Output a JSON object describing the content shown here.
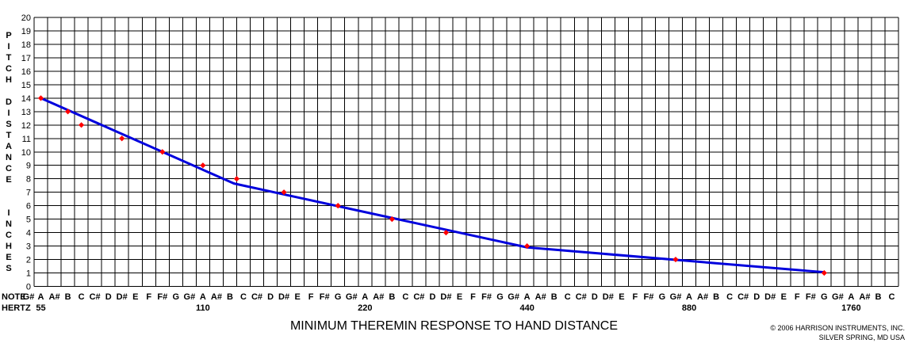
{
  "chart_data": {
    "type": "line",
    "title": "MINIMUM THEREMIN RESPONSE TO HAND DISTANCE",
    "ylabel_top": "PITCH",
    "ylabel_middle": "DISTANCE",
    "ylabel_bottom": "INCHES",
    "ylim": [
      0,
      20
    ],
    "y_ticks": [
      "0",
      "1",
      "2",
      "3",
      "4",
      "5",
      "6",
      "7",
      "8",
      "9",
      "10",
      "11",
      "12",
      "13",
      "14",
      "15",
      "16",
      "17",
      "18",
      "19",
      "20"
    ],
    "note_row_label": "NOTE",
    "hertz_row_label": "HERTZ",
    "notes": [
      "G#",
      "A",
      "A#",
      "B",
      "C",
      "C#",
      "D",
      "D#",
      "E",
      "F",
      "F#",
      "G",
      "G#",
      "A",
      "A#",
      "B",
      "C",
      "C#",
      "D",
      "D#",
      "E",
      "F",
      "F#",
      "G",
      "G#",
      "A",
      "A#",
      "B",
      "C",
      "C#",
      "D",
      "D#",
      "E",
      "F",
      "F#",
      "G",
      "G#",
      "A",
      "A#",
      "B",
      "C",
      "C#",
      "D",
      "D#",
      "E",
      "F",
      "F#",
      "G",
      "G#",
      "A",
      "A#",
      "B",
      "C",
      "C#",
      "D",
      "D#",
      "E",
      "F",
      "F#",
      "G",
      "G#",
      "A",
      "A#",
      "B",
      "C"
    ],
    "hertz_labels": [
      {
        "note_index": 1,
        "label": "55"
      },
      {
        "note_index": 13,
        "label": "110"
      },
      {
        "note_index": 25,
        "label": "220"
      },
      {
        "note_index": 37,
        "label": "440"
      },
      {
        "note_index": 49,
        "label": "880"
      },
      {
        "note_index": 61,
        "label": "1760"
      }
    ],
    "grid": true,
    "series": [
      {
        "kind": "measured",
        "color": "#ff0000",
        "points": [
          {
            "x": 0,
            "y": 14
          },
          {
            "x": 2,
            "y": 13
          },
          {
            "x": 3,
            "y": 12
          },
          {
            "x": 6,
            "y": 11
          },
          {
            "x": 9,
            "y": 10
          },
          {
            "x": 12,
            "y": 9
          },
          {
            "x": 14.5,
            "y": 8
          },
          {
            "x": 18,
            "y": 7
          },
          {
            "x": 22,
            "y": 6
          },
          {
            "x": 26,
            "y": 5
          },
          {
            "x": 30,
            "y": 4
          },
          {
            "x": 36,
            "y": 3
          },
          {
            "x": 47,
            "y": 2
          },
          {
            "x": 58,
            "y": 1
          }
        ]
      },
      {
        "kind": "fit",
        "color": "#0000dd",
        "points": [
          {
            "x": 0,
            "y": 14
          },
          {
            "x": 14.3,
            "y": 7.65
          },
          {
            "x": 36,
            "y": 2.9
          },
          {
            "x": 58,
            "y": 1.05
          }
        ]
      }
    ]
  },
  "copyright_line1": "© 2006 HARRISON INSTRUMENTS, INC.",
  "copyright_line2": "SILVER SPRING, MD USA"
}
